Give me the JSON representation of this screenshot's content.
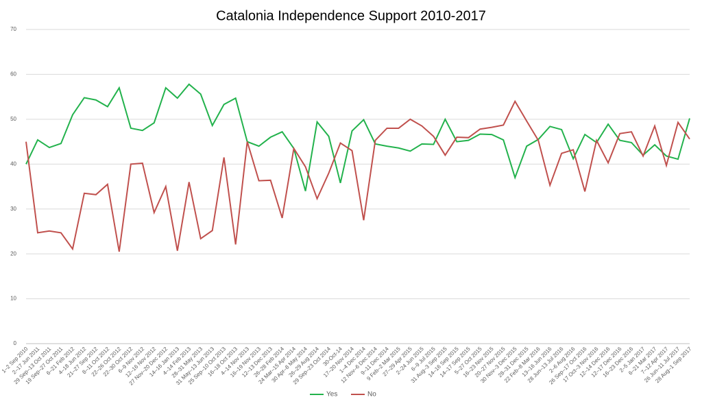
{
  "chart_data": {
    "type": "line",
    "title": "Catalonia Independence Support 2010-2017",
    "categories": [
      "1–2 Sep 2010",
      "2–17 Jun 2011",
      "29 Sep–13 Oct 2011",
      "19 Sep–27 Oct 2011",
      "6–21 Feb 2012",
      "4–18 Jun 2012",
      "21–27 Sep 2012",
      "8–11 Oct 2012",
      "22–26 Oct 2012",
      "22–30 Oct 2012",
      "6–9 Nov 2012",
      "12–16 Nov 2012",
      "27 Nov–20 Dec 2012",
      "14–16 Jan 2013",
      "4–14 Feb 2013",
      "28–31 May 2013",
      "31 May–13 Jun 2013",
      "25 Sep–10 Oct 2013",
      "16–18 Oct 2013",
      "4–14 Nov 2013",
      "16–19 Nov 2013",
      "12–13 Dec 2013",
      "26–28 Feb 2014",
      "24 Mar–15 Apr 2014",
      "30 Apr–8 May 2014",
      "26–29 Aug 2014",
      "29 Sep–23 Oct 2014",
      "30-Oct-14",
      "17–20 Nov 2014",
      "1–4 Dec 2014",
      "12 Nov–6 Dec 2014",
      "9–11 Dec 2014",
      "9 Feb–2 Mar 2015",
      "27–29 Apr 2015",
      "2–24 Jun 2015",
      "6–9 Jul 2015",
      "31 Aug–3 Sep 2015",
      "14–16 Sep 2015",
      "14–17 Sep 2015",
      "5–27 Oct 2015",
      "16–23 Nov 2015",
      "20–27 Nov 2015",
      "30 Nov–3 Dec 2015",
      "28–31 Dec 2015",
      "22 Feb–8 Mar 2016",
      "13–16 Jun 2016",
      "28 Jun–13 Jul 2016",
      "2–6 Aug 2016",
      "26 Sep–17 Oct 2016",
      "17 Oct–3 Nov 2016",
      "12–14 Dec 2016",
      "12–17 Dec 2016",
      "16–23 Dec 2016",
      "2–5 Jan 2017",
      "6–21 Mar 2017",
      "7–12 Apr 2017",
      "26 Jun–11 Jul 2017",
      "28 Aug–1 Sep 2017"
    ],
    "series": [
      {
        "name": "Yes",
        "color": "#22b24c",
        "values": [
          40,
          45.4,
          43.7,
          44.6,
          51,
          54.8,
          54.3,
          52.8,
          57,
          48,
          47.5,
          49.2,
          57,
          54.7,
          57.8,
          55.6,
          48.6,
          53.3,
          54.7,
          45,
          44,
          46,
          47.2,
          43.5,
          34,
          49.4,
          46.2,
          35.8,
          47.4,
          49.9,
          44.5,
          44,
          43.6,
          42.9,
          44.5,
          44.4,
          50,
          45,
          45.3,
          46.7,
          46.6,
          45.4,
          37,
          44,
          45.5,
          48.4,
          47.7,
          41.2,
          46.6,
          44.8,
          48.9,
          45.3,
          44.8,
          42,
          44.3,
          41.8,
          41.1,
          50.2
        ]
      },
      {
        "name": "No",
        "color": "#c0504d",
        "values": [
          45,
          24.7,
          25.1,
          24.7,
          21.1,
          33.5,
          33.2,
          35.5,
          20.5,
          40,
          40.2,
          29.2,
          35,
          20.7,
          36,
          23.4,
          25.2,
          41.5,
          22.1,
          45,
          36.3,
          36.4,
          28,
          43.5,
          39.4,
          32.3,
          38,
          44.7,
          43,
          27.5,
          45.3,
          48,
          48,
          50,
          48.5,
          46.2,
          42,
          46,
          45.9,
          47.8,
          48.2,
          48.7,
          54,
          49.6,
          45.3,
          35.3,
          42.4,
          43.2,
          33.9,
          45.3,
          40.3,
          46.8,
          47.2,
          41.8,
          48.5,
          39.7,
          49.3,
          45.6
        ]
      }
    ],
    "ylim": [
      0,
      70
    ],
    "yticks": [
      0,
      10,
      20,
      30,
      40,
      50,
      60,
      70
    ],
    "grid": true,
    "legend": "bottom"
  }
}
